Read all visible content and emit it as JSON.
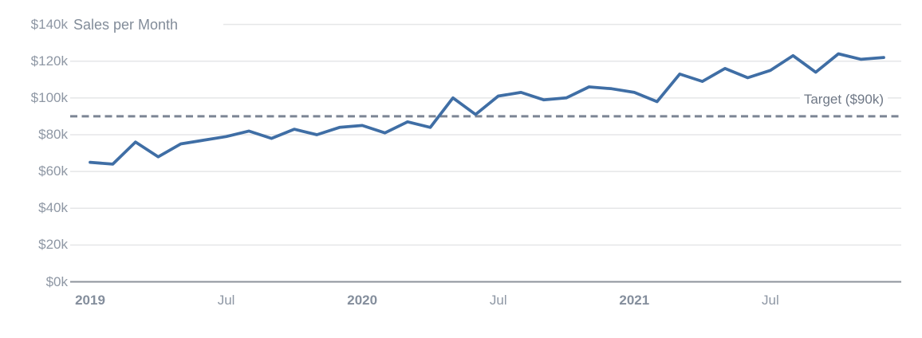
{
  "chart_data": {
    "type": "line",
    "title": "Sales per Month",
    "categories": [
      "Jan 2019",
      "Feb 2019",
      "Mar 2019",
      "Apr 2019",
      "May 2019",
      "Jun 2019",
      "Jul 2019",
      "Aug 2019",
      "Sep 2019",
      "Oct 2019",
      "Nov 2019",
      "Dec 2019",
      "Jan 2020",
      "Feb 2020",
      "Mar 2020",
      "Apr 2020",
      "May 2020",
      "Jun 2020",
      "Jul 2020",
      "Aug 2020",
      "Sep 2020",
      "Oct 2020",
      "Nov 2020",
      "Dec 2020",
      "Jan 2021",
      "Feb 2021",
      "Mar 2021",
      "Apr 2021",
      "May 2021",
      "Jun 2021",
      "Jul 2021",
      "Aug 2021",
      "Sep 2021",
      "Oct 2021",
      "Nov 2021",
      "Dec 2021"
    ],
    "series": [
      {
        "name": "Sales",
        "unit": "$k",
        "values": [
          65,
          64,
          76,
          68,
          75,
          77,
          79,
          82,
          78,
          83,
          80,
          84,
          85,
          81,
          87,
          84,
          100,
          91,
          101,
          103,
          99,
          100,
          106,
          105,
          103,
          98,
          113,
          109,
          116,
          111,
          115,
          123,
          114,
          124,
          121,
          122
        ]
      }
    ],
    "target": {
      "label": "Target ($90k)",
      "value": 90
    },
    "ylim": [
      0,
      140
    ],
    "y_ticks": [
      {
        "value": 0,
        "label": "$0k"
      },
      {
        "value": 20,
        "label": "$20k"
      },
      {
        "value": 40,
        "label": "$40k"
      },
      {
        "value": 60,
        "label": "$60k"
      },
      {
        "value": 80,
        "label": "$80k"
      },
      {
        "value": 100,
        "label": "$100k"
      },
      {
        "value": 120,
        "label": "$120k"
      },
      {
        "value": 140,
        "label": "$140k"
      }
    ],
    "x_ticks": [
      {
        "index": 0,
        "label": "2019",
        "bold": true
      },
      {
        "index": 6,
        "label": "Jul",
        "bold": false
      },
      {
        "index": 12,
        "label": "2020",
        "bold": true
      },
      {
        "index": 18,
        "label": "Jul",
        "bold": false
      },
      {
        "index": 24,
        "label": "2021",
        "bold": true
      },
      {
        "index": 30,
        "label": "Jul",
        "bold": false
      }
    ],
    "grid": true,
    "legend": "none"
  },
  "colors": {
    "series_line": "#3f6ea5",
    "target_line": "#7c8594",
    "gridline": "#e5e6e8",
    "axis_line": "#8e939b",
    "axis_label": "#8e97a4",
    "title_text": "#828c99",
    "target_label_text": "#6f7886",
    "background": "#ffffff"
  }
}
